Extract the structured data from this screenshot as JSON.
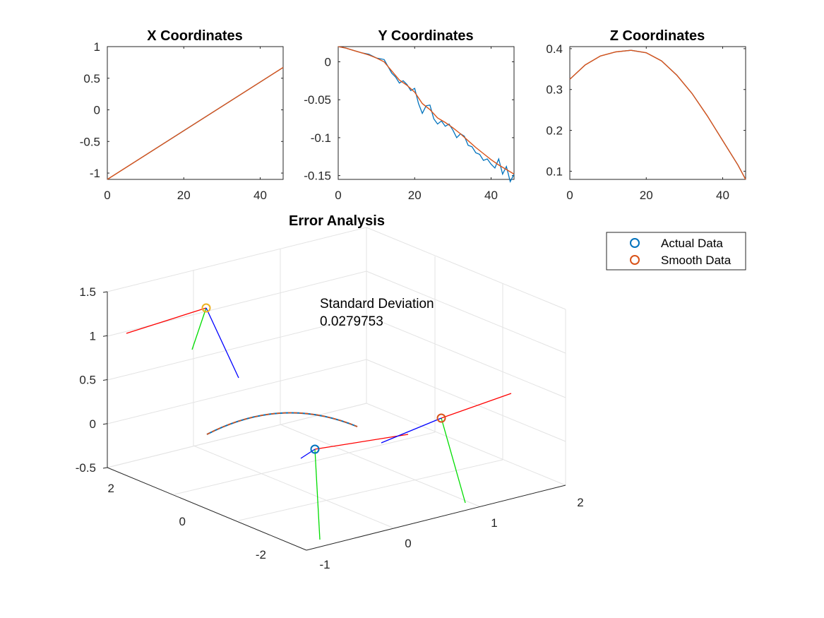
{
  "colors": {
    "actual": "#0072BD",
    "smooth": "#D95319",
    "marker_top": "#EDB120",
    "frame_x": "#ff0000",
    "frame_y": "#00dd00",
    "frame_z": "#0000ff",
    "axes": "#262626",
    "grid": "#e3e3e3"
  },
  "chart_data": [
    {
      "id": "x-coordinates",
      "type": "line",
      "title": "X Coordinates",
      "xlabel": "",
      "ylabel": "",
      "xlim": [
        0,
        46
      ],
      "ylim": [
        -1.1,
        1
      ],
      "xticks": [
        0,
        20,
        40
      ],
      "yticks": [
        1,
        0.5,
        0,
        -0.5,
        -1
      ],
      "ytick_labels": [
        "1",
        "0.5",
        "0",
        "-0.5",
        "-1"
      ],
      "series": [
        {
          "style": "actual",
          "x": [
            0,
            46
          ],
          "y": [
            -1.1,
            0.67
          ]
        },
        {
          "style": "smooth",
          "x": [
            0,
            46
          ],
          "y": [
            -1.1,
            0.67
          ]
        }
      ]
    },
    {
      "id": "y-coordinates",
      "type": "line",
      "title": "Y Coordinates",
      "xlabel": "",
      "ylabel": "",
      "xlim": [
        0,
        46
      ],
      "ylim": [
        -0.155,
        0.02
      ],
      "xticks": [
        0,
        20,
        40
      ],
      "yticks": [
        0,
        -0.05,
        -0.1,
        -0.15
      ],
      "ytick_labels": [
        "0",
        "-0.05",
        "-0.1",
        "-0.15"
      ],
      "series": [
        {
          "style": "actual",
          "x": [
            0,
            2,
            4,
            6,
            8,
            10,
            12,
            14,
            15,
            16,
            17,
            18,
            19,
            20,
            21,
            22,
            23,
            24,
            25,
            26,
            27,
            28,
            29,
            30,
            31,
            32,
            33,
            34,
            35,
            36,
            37,
            38,
            39,
            40,
            41,
            42,
            43,
            44,
            45,
            46
          ],
          "y": [
            0.02,
            0.018,
            0.015,
            0.012,
            0.01,
            0.005,
            0.003,
            -0.015,
            -0.02,
            -0.028,
            -0.025,
            -0.03,
            -0.038,
            -0.035,
            -0.055,
            -0.068,
            -0.058,
            -0.057,
            -0.075,
            -0.082,
            -0.078,
            -0.085,
            -0.082,
            -0.09,
            -0.1,
            -0.095,
            -0.098,
            -0.11,
            -0.112,
            -0.12,
            -0.122,
            -0.13,
            -0.128,
            -0.135,
            -0.14,
            -0.128,
            -0.148,
            -0.138,
            -0.158,
            -0.148
          ]
        },
        {
          "style": "smooth",
          "x": [
            0,
            2,
            4,
            6,
            8,
            10,
            12,
            14,
            16,
            18,
            20,
            22,
            24,
            26,
            28,
            30,
            32,
            34,
            36,
            38,
            40,
            42,
            44,
            46
          ],
          "y": [
            0.02,
            0.018,
            0.015,
            0.012,
            0.009,
            0.005,
            0.0,
            -0.012,
            -0.024,
            -0.031,
            -0.04,
            -0.055,
            -0.063,
            -0.074,
            -0.08,
            -0.087,
            -0.095,
            -0.104,
            -0.113,
            -0.121,
            -0.129,
            -0.136,
            -0.142,
            -0.148
          ]
        }
      ]
    },
    {
      "id": "z-coordinates",
      "type": "line",
      "title": "Z Coordinates",
      "xlabel": "",
      "ylabel": "",
      "xlim": [
        0,
        46
      ],
      "ylim": [
        0.08,
        0.405
      ],
      "xticks": [
        0,
        20,
        40
      ],
      "yticks": [
        0.4,
        0.3,
        0.2,
        0.1
      ],
      "ytick_labels": [
        "0.4",
        "0.3",
        "0.2",
        "0.1"
      ],
      "series": [
        {
          "style": "actual",
          "x": [
            0,
            4,
            8,
            12,
            16,
            20,
            24,
            28,
            32,
            36,
            40,
            44,
            46
          ],
          "y": [
            0.325,
            0.36,
            0.382,
            0.392,
            0.396,
            0.39,
            0.37,
            0.335,
            0.29,
            0.235,
            0.175,
            0.115,
            0.08
          ]
        },
        {
          "style": "smooth",
          "x": [
            0,
            4,
            8,
            12,
            16,
            20,
            24,
            28,
            32,
            36,
            40,
            44,
            46
          ],
          "y": [
            0.325,
            0.36,
            0.382,
            0.392,
            0.396,
            0.39,
            0.37,
            0.335,
            0.29,
            0.235,
            0.175,
            0.115,
            0.08
          ]
        }
      ]
    },
    {
      "id": "error-analysis",
      "type": "line3d",
      "title": "Error Analysis",
      "xlim": [
        -1,
        2
      ],
      "ylim": [
        -3,
        3
      ],
      "zlim": [
        -0.5,
        1.5
      ],
      "xticks": [
        -1,
        0,
        1,
        2
      ],
      "yticks": [
        -2,
        0,
        2
      ],
      "zticks": [
        1.5,
        1,
        0.5,
        0,
        -0.5
      ],
      "ztick_labels": [
        "1.5",
        "1",
        "0.5",
        "0",
        "-0.5"
      ],
      "grid": true,
      "legend": {
        "position": "top-right",
        "entries": [
          {
            "label": "Actual Data",
            "style": "actual"
          },
          {
            "label": "Smooth Data",
            "style": "smooth"
          }
        ]
      },
      "annotation": {
        "line1": "Standard Deviation",
        "line2": "0.0279753"
      }
    }
  ]
}
